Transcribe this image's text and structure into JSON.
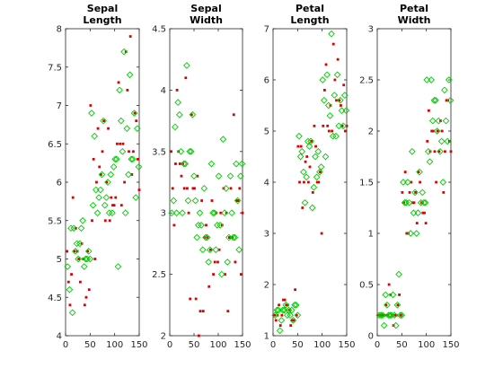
{
  "figure": {
    "background": "#ffffff",
    "marker_colors": {
      "original": "#dd0000",
      "overlay": "#00cc00"
    }
  },
  "chart_data": [
    {
      "type": "scatter",
      "title": [
        "Sepal",
        "Length"
      ],
      "xlim": [
        0,
        150
      ],
      "ylim": [
        4,
        8
      ],
      "xticks": [
        0,
        50,
        100,
        150
      ],
      "xtick_labels": [
        "0",
        "50",
        "100",
        "150"
      ],
      "yticks": [
        4,
        4.5,
        5,
        5.5,
        6,
        6.5,
        7,
        7.5,
        8
      ],
      "ytick_labels": [
        "4",
        "4.5",
        "5",
        "5.5",
        "6",
        "6.5",
        "7",
        "7.5",
        "8"
      ],
      "series": [
        {
          "marker": "dot",
          "color": "#dd0000",
          "x": [
            3,
            6,
            9,
            12,
            15,
            18,
            21,
            24,
            27,
            30,
            33,
            36,
            39,
            42,
            45,
            48,
            51,
            54,
            57,
            60,
            63,
            66,
            69,
            72,
            75,
            78,
            81,
            84,
            87,
            90,
            93,
            96,
            99,
            102,
            105,
            108,
            111,
            114,
            117,
            120,
            123,
            126,
            129,
            132,
            135,
            138,
            141,
            144,
            147,
            150
          ],
          "y": [
            5.1,
            4.7,
            4.4,
            4.8,
            5.8,
            5.1,
            5.4,
            5.1,
            5.0,
            4.7,
            5.2,
            5.0,
            4.4,
            4.5,
            5.1,
            4.6,
            7.0,
            5.5,
            6.3,
            5.0,
            6.0,
            6.7,
            6.2,
            6.1,
            6.4,
            6.8,
            5.5,
            6.0,
            6.7,
            5.5,
            5.8,
            5.7,
            5.7,
            5.8,
            6.5,
            7.3,
            6.5,
            5.7,
            6.5,
            6.0,
            7.7,
            7.2,
            6.4,
            7.9,
            6.1,
            6.4,
            6.9,
            6.8,
            6.3,
            5.9
          ]
        },
        {
          "marker": "diamond",
          "color": "#00cc00",
          "x": [
            4,
            8,
            11,
            14,
            17,
            20,
            23,
            26,
            29,
            32,
            35,
            38,
            41,
            44,
            47,
            50,
            53,
            56,
            59,
            62,
            65,
            68,
            71,
            74,
            77,
            80,
            83,
            86,
            89,
            92,
            95,
            98,
            101,
            104,
            107,
            110,
            113,
            116,
            119,
            122,
            125,
            128,
            131,
            134,
            137,
            140,
            143,
            146,
            149
          ],
          "y": [
            4.9,
            4.6,
            5.4,
            4.3,
            5.4,
            5.1,
            5.2,
            5.0,
            5.2,
            5.4,
            5.5,
            4.9,
            5.0,
            5.0,
            5.1,
            5.0,
            6.9,
            5.7,
            6.6,
            5.9,
            5.6,
            5.8,
            5.9,
            6.1,
            6.8,
            5.7,
            5.8,
            6.0,
            5.6,
            6.1,
            5.6,
            6.2,
            6.3,
            6.3,
            4.9,
            7.2,
            6.8,
            6.4,
            7.7,
            5.6,
            6.7,
            6.1,
            7.4,
            6.3,
            6.3,
            6.9,
            5.8,
            6.7,
            6.2
          ]
        }
      ]
    },
    {
      "type": "scatter",
      "title": [
        "Sepal",
        "Width"
      ],
      "xlim": [
        0,
        150
      ],
      "ylim": [
        2,
        4.5
      ],
      "xticks": [
        0,
        50,
        100,
        150
      ],
      "xtick_labels": [
        "0",
        "50",
        "100",
        "150"
      ],
      "yticks": [
        2,
        2.5,
        3,
        3.5,
        4,
        4.5
      ],
      "ytick_labels": [
        "2",
        "2.5",
        "3",
        "3.5",
        "4",
        "4.5"
      ],
      "series": [
        {
          "marker": "dot",
          "color": "#dd0000",
          "x": [
            3,
            6,
            9,
            12,
            15,
            18,
            21,
            24,
            27,
            30,
            33,
            36,
            39,
            42,
            45,
            48,
            51,
            54,
            57,
            60,
            63,
            66,
            69,
            72,
            75,
            78,
            81,
            84,
            87,
            90,
            93,
            96,
            99,
            102,
            105,
            108,
            111,
            114,
            117,
            120,
            123,
            126,
            129,
            132,
            135,
            138,
            141,
            144,
            147,
            150
          ],
          "y": [
            3.5,
            3.2,
            2.9,
            3.4,
            4.0,
            3.5,
            3.4,
            3.3,
            3.4,
            3.2,
            4.1,
            3.2,
            3.0,
            2.3,
            3.8,
            3.2,
            3.2,
            2.3,
            3.3,
            2.0,
            2.2,
            3.1,
            2.2,
            2.8,
            2.9,
            2.8,
            2.4,
            2.7,
            3.1,
            2.5,
            2.6,
            3.0,
            2.6,
            2.7,
            3.0,
            2.9,
            3.2,
            2.5,
            3.0,
            2.2,
            2.8,
            3.2,
            2.8,
            3.8,
            2.6,
            3.1,
            3.1,
            3.2,
            2.5,
            3.0
          ]
        },
        {
          "marker": "diamond",
          "color": "#00cc00",
          "x": [
            4,
            8,
            11,
            14,
            17,
            20,
            23,
            26,
            29,
            32,
            35,
            38,
            41,
            44,
            47,
            50,
            53,
            56,
            59,
            62,
            65,
            68,
            71,
            74,
            77,
            80,
            83,
            86,
            89,
            92,
            95,
            98,
            101,
            104,
            107,
            110,
            113,
            116,
            119,
            122,
            125,
            128,
            131,
            134,
            137,
            140,
            143,
            146,
            149
          ],
          "y": [
            3.0,
            3.1,
            3.7,
            3.0,
            3.9,
            3.8,
            3.5,
            3.0,
            3.4,
            3.4,
            4.2,
            3.1,
            3.5,
            3.5,
            3.8,
            3.3,
            3.1,
            2.8,
            2.9,
            3.0,
            2.9,
            2.7,
            3.2,
            2.8,
            2.8,
            2.6,
            2.7,
            3.4,
            3.0,
            3.0,
            2.7,
            2.9,
            3.3,
            2.9,
            2.5,
            3.6,
            3.0,
            3.2,
            2.6,
            2.8,
            3.3,
            3.0,
            2.8,
            2.8,
            3.4,
            3.1,
            2.7,
            3.3,
            3.4
          ]
        }
      ]
    },
    {
      "type": "scatter",
      "title": [
        "Petal",
        "Length"
      ],
      "xlim": [
        0,
        150
      ],
      "ylim": [
        1,
        7
      ],
      "xticks": [
        0,
        50,
        100,
        150
      ],
      "xtick_labels": [
        "0",
        "50",
        "100",
        "150"
      ],
      "yticks": [
        1,
        2,
        3,
        4,
        5,
        6,
        7
      ],
      "ytick_labels": [
        "1",
        "2",
        "3",
        "4",
        "5",
        "6",
        "7"
      ],
      "series": [
        {
          "marker": "dot",
          "color": "#dd0000",
          "x": [
            3,
            6,
            9,
            12,
            15,
            18,
            21,
            24,
            27,
            30,
            33,
            36,
            39,
            42,
            45,
            48,
            51,
            54,
            57,
            60,
            63,
            66,
            69,
            72,
            75,
            78,
            81,
            84,
            87,
            90,
            93,
            96,
            99,
            102,
            105,
            108,
            111,
            114,
            117,
            120,
            123,
            126,
            129,
            132,
            135,
            138,
            141,
            144,
            147,
            150
          ],
          "y": [
            1.4,
            1.3,
            1.4,
            1.6,
            1.2,
            1.4,
            1.7,
            1.7,
            1.6,
            1.6,
            1.5,
            1.2,
            1.3,
            1.3,
            1.9,
            1.4,
            4.7,
            4.0,
            4.7,
            3.5,
            4.0,
            4.4,
            4.5,
            4.0,
            4.3,
            4.8,
            3.8,
            5.1,
            4.7,
            4.0,
            4.0,
            4.2,
            3.0,
            5.1,
            5.8,
            6.3,
            5.1,
            5.0,
            5.5,
            5.0,
            6.7,
            6.0,
            5.6,
            6.4,
            5.6,
            5.5,
            5.1,
            5.9,
            5.0,
            5.1
          ]
        },
        {
          "marker": "diamond",
          "color": "#00cc00",
          "x": [
            4,
            8,
            11,
            14,
            17,
            20,
            23,
            26,
            29,
            32,
            35,
            38,
            41,
            44,
            47,
            50,
            53,
            56,
            59,
            62,
            65,
            68,
            71,
            74,
            77,
            80,
            83,
            86,
            89,
            92,
            95,
            98,
            101,
            104,
            107,
            110,
            113,
            116,
            119,
            122,
            125,
            128,
            131,
            134,
            137,
            140,
            143,
            146,
            149
          ],
          "y": [
            1.4,
            1.5,
            1.5,
            1.1,
            1.3,
            1.5,
            1.5,
            1.6,
            1.4,
            1.5,
            1.4,
            1.5,
            1.3,
            1.6,
            1.6,
            1.4,
            4.9,
            4.5,
            4.6,
            4.2,
            3.6,
            4.1,
            4.8,
            4.7,
            4.8,
            3.5,
            3.9,
            4.5,
            4.1,
            4.6,
            4.2,
            4.3,
            6.0,
            5.6,
            4.5,
            6.1,
            5.5,
            5.3,
            6.9,
            4.9,
            5.7,
            4.9,
            6.1,
            5.1,
            5.6,
            5.4,
            5.1,
            5.7,
            5.4
          ]
        }
      ]
    },
    {
      "type": "scatter",
      "title": [
        "Petal",
        "Width"
      ],
      "xlim": [
        0,
        150
      ],
      "ylim": [
        0,
        3
      ],
      "xticks": [
        0,
        50,
        100,
        150
      ],
      "xtick_labels": [
        "0",
        "50",
        "100",
        "150"
      ],
      "yticks": [
        0,
        0.5,
        1,
        1.5,
        2,
        2.5,
        3
      ],
      "ytick_labels": [
        "0",
        "0.5",
        "1",
        "1.5",
        "2",
        "2.5",
        "3"
      ],
      "series": [
        {
          "marker": "dot",
          "color": "#dd0000",
          "x": [
            3,
            6,
            9,
            12,
            15,
            18,
            21,
            24,
            27,
            30,
            33,
            36,
            39,
            42,
            45,
            48,
            51,
            54,
            57,
            60,
            63,
            66,
            69,
            72,
            75,
            78,
            81,
            84,
            87,
            90,
            93,
            96,
            99,
            102,
            105,
            108,
            111,
            114,
            117,
            120,
            123,
            126,
            129,
            132,
            135,
            138,
            141,
            144,
            147,
            150
          ],
          "y": [
            0.2,
            0.2,
            0.2,
            0.2,
            0.2,
            0.3,
            0.2,
            0.5,
            0.4,
            0.2,
            0.1,
            0.2,
            0.2,
            0.3,
            0.4,
            0.2,
            1.4,
            1.3,
            1.6,
            1.0,
            1.0,
            1.4,
            1.5,
            1.3,
            1.3,
            1.4,
            1.1,
            1.6,
            1.5,
            1.3,
            1.2,
            1.2,
            1.1,
            1.9,
            2.2,
            1.8,
            2.0,
            2.0,
            1.8,
            1.5,
            2.0,
            1.8,
            2.1,
            2.0,
            1.4,
            1.8,
            2.3,
            2.3,
            1.9,
            1.8
          ]
        },
        {
          "marker": "diamond",
          "color": "#00cc00",
          "x": [
            4,
            8,
            11,
            14,
            17,
            20,
            23,
            26,
            29,
            32,
            35,
            38,
            41,
            44,
            47,
            50,
            53,
            56,
            59,
            62,
            65,
            68,
            71,
            74,
            77,
            80,
            83,
            86,
            89,
            92,
            95,
            98,
            101,
            104,
            107,
            110,
            113,
            116,
            119,
            122,
            125,
            128,
            131,
            134,
            137,
            140,
            143,
            146,
            149
          ],
          "y": [
            0.2,
            0.2,
            0.2,
            0.1,
            0.4,
            0.3,
            0.2,
            0.2,
            0.2,
            0.4,
            0.2,
            0.1,
            0.3,
            0.6,
            0.2,
            0.2,
            1.5,
            1.3,
            1.3,
            1.5,
            1.3,
            1.0,
            1.8,
            1.2,
            1.4,
            1.0,
            1.2,
            1.6,
            1.3,
            1.4,
            1.3,
            1.3,
            2.5,
            1.8,
            1.7,
            2.5,
            2.1,
            2.3,
            2.3,
            2.0,
            2.1,
            1.8,
            1.9,
            1.5,
            2.4,
            2.1,
            1.9,
            2.5,
            2.3
          ]
        }
      ]
    }
  ]
}
